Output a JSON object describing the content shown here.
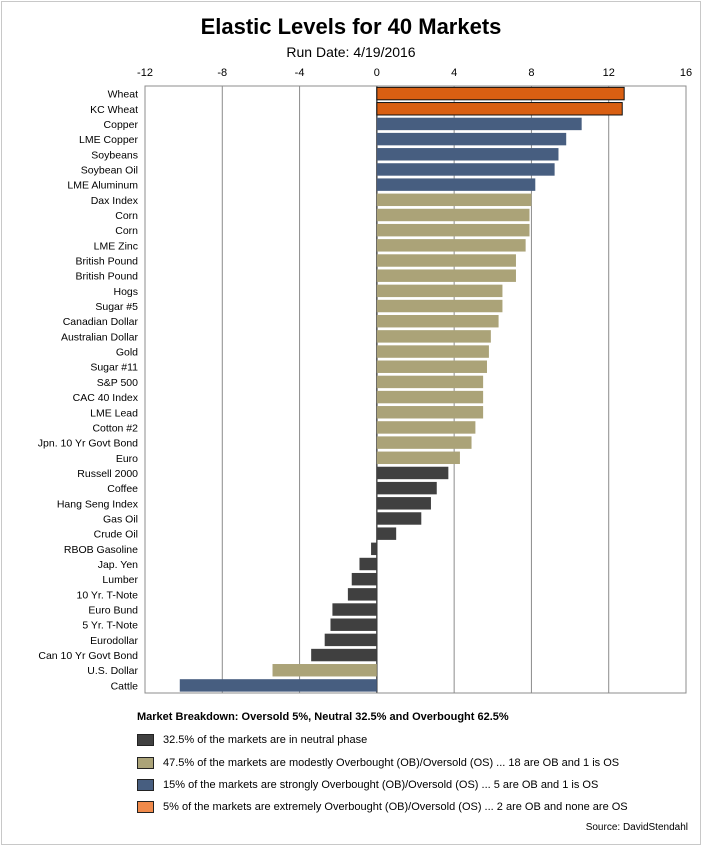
{
  "chart_data": {
    "type": "bar",
    "orientation": "horizontal",
    "title": "Elastic Levels for 40 Markets",
    "subtitle": "Run Date:  4/19/2016",
    "xlim": [
      -12,
      16
    ],
    "xticks": [
      "-12",
      "-8",
      "-4",
      "0",
      "4",
      "8",
      "12",
      "16"
    ],
    "grid": true,
    "categories": [
      "Wheat",
      "KC Wheat",
      "Copper",
      "LME Copper",
      "Soybeans",
      "Soybean Oil",
      "LME Aluminum",
      "Dax Index",
      "Corn",
      "Corn",
      "LME Zinc",
      "British Pound",
      "British Pound",
      "Hogs",
      "Sugar #5",
      "Canadian Dollar",
      "Australian Dollar",
      "Gold",
      "Sugar #11",
      "S&P 500",
      "CAC 40 Index",
      "LME Lead",
      "Cotton #2",
      "Jpn. 10 Yr Govt Bond",
      "Euro",
      "Russell 2000",
      "Coffee",
      "Hang Seng Index",
      "Gas Oil",
      "Crude Oil",
      "RBOB Gasoline",
      "Jap. Yen",
      "Lumber",
      "10 Yr. T-Note",
      "Euro Bund",
      "5 Yr. T-Note",
      "Eurodollar",
      "Can 10 Yr Govt Bond",
      "U.S. Dollar",
      "Cattle"
    ],
    "values": [
      12.8,
      12.7,
      10.6,
      9.8,
      9.4,
      9.2,
      8.2,
      8.0,
      7.9,
      7.9,
      7.7,
      7.2,
      7.2,
      6.5,
      6.5,
      6.3,
      5.9,
      5.8,
      5.7,
      5.5,
      5.5,
      5.5,
      5.1,
      4.9,
      4.3,
      3.7,
      3.1,
      2.8,
      2.3,
      1.0,
      -0.3,
      -0.9,
      -1.3,
      -1.5,
      -2.3,
      -2.4,
      -2.7,
      -3.4,
      -5.4,
      -10.2
    ],
    "groups": [
      "extreme",
      "extreme",
      "strong",
      "strong",
      "strong",
      "strong",
      "strong",
      "modest",
      "modest",
      "modest",
      "modest",
      "modest",
      "modest",
      "modest",
      "modest",
      "modest",
      "modest",
      "modest",
      "modest",
      "modest",
      "modest",
      "modest",
      "modest",
      "modest",
      "modest",
      "neutral",
      "neutral",
      "neutral",
      "neutral",
      "neutral",
      "neutral",
      "neutral",
      "neutral",
      "neutral",
      "neutral",
      "neutral",
      "neutral",
      "neutral",
      "modest",
      "strong"
    ]
  },
  "colors": {
    "neutral": "#404040",
    "modest": "#aba378",
    "strong": "#475e80",
    "extreme": "#d95f12",
    "legend_extreme": "#f08a4b"
  },
  "breakdown": "Market Breakdown:  Oversold 5%, Neutral  32.5% and Overbought 62.5%",
  "legend": [
    {
      "group": "neutral",
      "text": "32.5% of the markets are in neutral phase"
    },
    {
      "group": "modest",
      "text": "47.5% of the markets are modestly Overbought (OB)/Oversold (OS) ... 18 are OB and 1 is OS"
    },
    {
      "group": "strong",
      "text": "15% of the markets are strongly Overbought (OB)/Oversold (OS) ... 5 are OB and 1 is OS"
    },
    {
      "group": "extreme",
      "text": "5% of the markets are extremely Overbought (OB)/Oversold (OS) ... 2 are OB and none are OS"
    }
  ],
  "source": "Source:  DavidStendahl"
}
